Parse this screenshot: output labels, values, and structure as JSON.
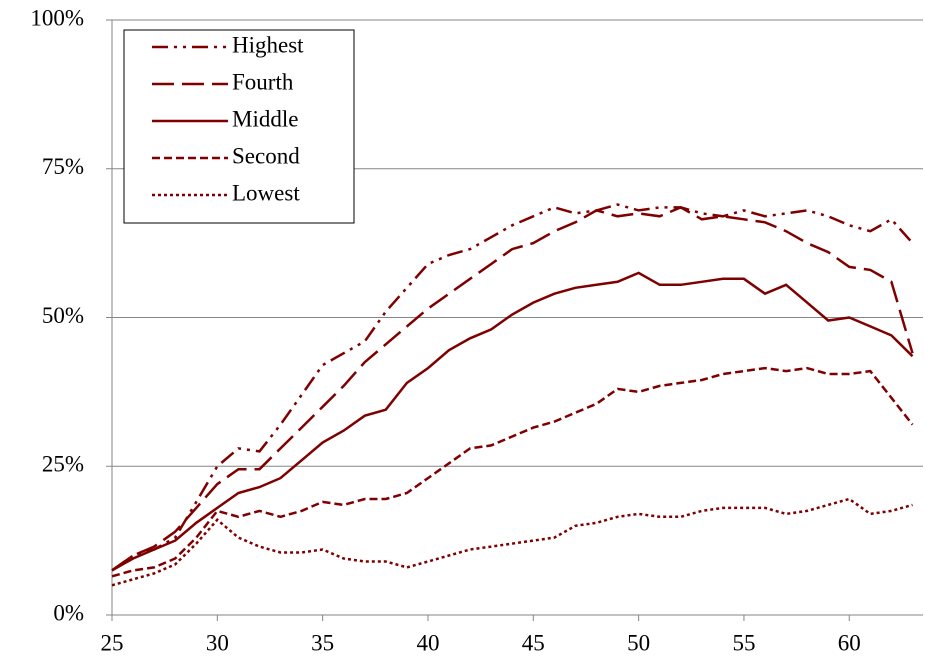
{
  "chart_data": {
    "type": "line",
    "x": [
      25,
      26,
      27,
      28,
      29,
      30,
      31,
      32,
      33,
      34,
      35,
      36,
      37,
      38,
      39,
      40,
      41,
      42,
      43,
      44,
      45,
      46,
      47,
      48,
      49,
      50,
      51,
      52,
      53,
      54,
      55,
      56,
      57,
      58,
      59,
      60,
      61,
      62,
      63
    ],
    "series": [
      {
        "name": "Highest",
        "color": "#7f0000",
        "values": [
          7.5,
          10,
          11,
          13,
          19,
          25,
          28,
          27.5,
          32,
          37,
          42,
          44,
          46,
          51,
          55,
          59,
          60.5,
          61.5,
          63.5,
          65.5,
          67,
          68.5,
          67.5,
          68,
          69,
          68,
          68.5,
          68.5,
          67.5,
          67,
          68,
          67,
          67.5,
          68,
          67,
          65.5,
          64.5,
          66.5,
          62.5
        ]
      },
      {
        "name": "Fourth",
        "color": "#7f0000",
        "values": [
          7.5,
          10,
          11.5,
          14,
          18,
          22,
          24.5,
          24.5,
          28,
          31.5,
          35,
          38.5,
          42.5,
          45.5,
          48.5,
          51.5,
          54,
          56.5,
          59,
          61.5,
          62.5,
          64.5,
          66,
          68,
          67,
          67.5,
          67,
          68.5,
          66.5,
          67,
          66.5,
          66,
          64.5,
          62.5,
          61,
          58.5,
          58,
          56,
          44
        ]
      },
      {
        "name": "Middle",
        "color": "#7f0000",
        "values": [
          7.5,
          9.5,
          11,
          12.5,
          15.5,
          18,
          20.5,
          21.5,
          23,
          26,
          29,
          31,
          33.5,
          34.5,
          39,
          41.5,
          44.5,
          46.5,
          48,
          50.5,
          52.5,
          54,
          55,
          55.5,
          56,
          57.5,
          55.5,
          55.5,
          56,
          56.5,
          56.5,
          54,
          55.5,
          52.5,
          49.5,
          50,
          48.5,
          47,
          43.5
        ]
      },
      {
        "name": "Second",
        "color": "#7f0000",
        "values": [
          6.5,
          7.5,
          8,
          9.5,
          13,
          17.5,
          16.5,
          17.5,
          16.5,
          17.5,
          19,
          18.5,
          19.5,
          19.5,
          20.5,
          23,
          25.5,
          28,
          28.5,
          30,
          31.5,
          32.5,
          34,
          35.5,
          38,
          37.5,
          38.5,
          39,
          39.5,
          40.5,
          41,
          41.5,
          41,
          41.5,
          40.5,
          40.5,
          41,
          36.5,
          32
        ]
      },
      {
        "name": "Lowest",
        "color": "#7f0000",
        "values": [
          5,
          6,
          7,
          8.5,
          12,
          16,
          13,
          11.5,
          10.5,
          10.5,
          11,
          9.5,
          9,
          9,
          8,
          9,
          10,
          11,
          11.5,
          12,
          12.5,
          13,
          15,
          15.5,
          16.5,
          17,
          16.5,
          16.5,
          17.5,
          18,
          18,
          18,
          17,
          17.5,
          18.5,
          19.5,
          17,
          17.5,
          18.5
        ]
      }
    ],
    "xlim": [
      25,
      63.5
    ],
    "xticks": [
      25,
      30,
      35,
      40,
      45,
      50,
      55,
      60
    ],
    "ylim": [
      0,
      100
    ],
    "yticks": [
      {
        "value": 0,
        "label": "0%"
      },
      {
        "value": 25,
        "label": "25%"
      },
      {
        "value": 50,
        "label": "50%"
      },
      {
        "value": 75,
        "label": "75%"
      },
      {
        "value": 100,
        "label": "100%"
      }
    ],
    "grid": true,
    "legend": "upper left"
  }
}
